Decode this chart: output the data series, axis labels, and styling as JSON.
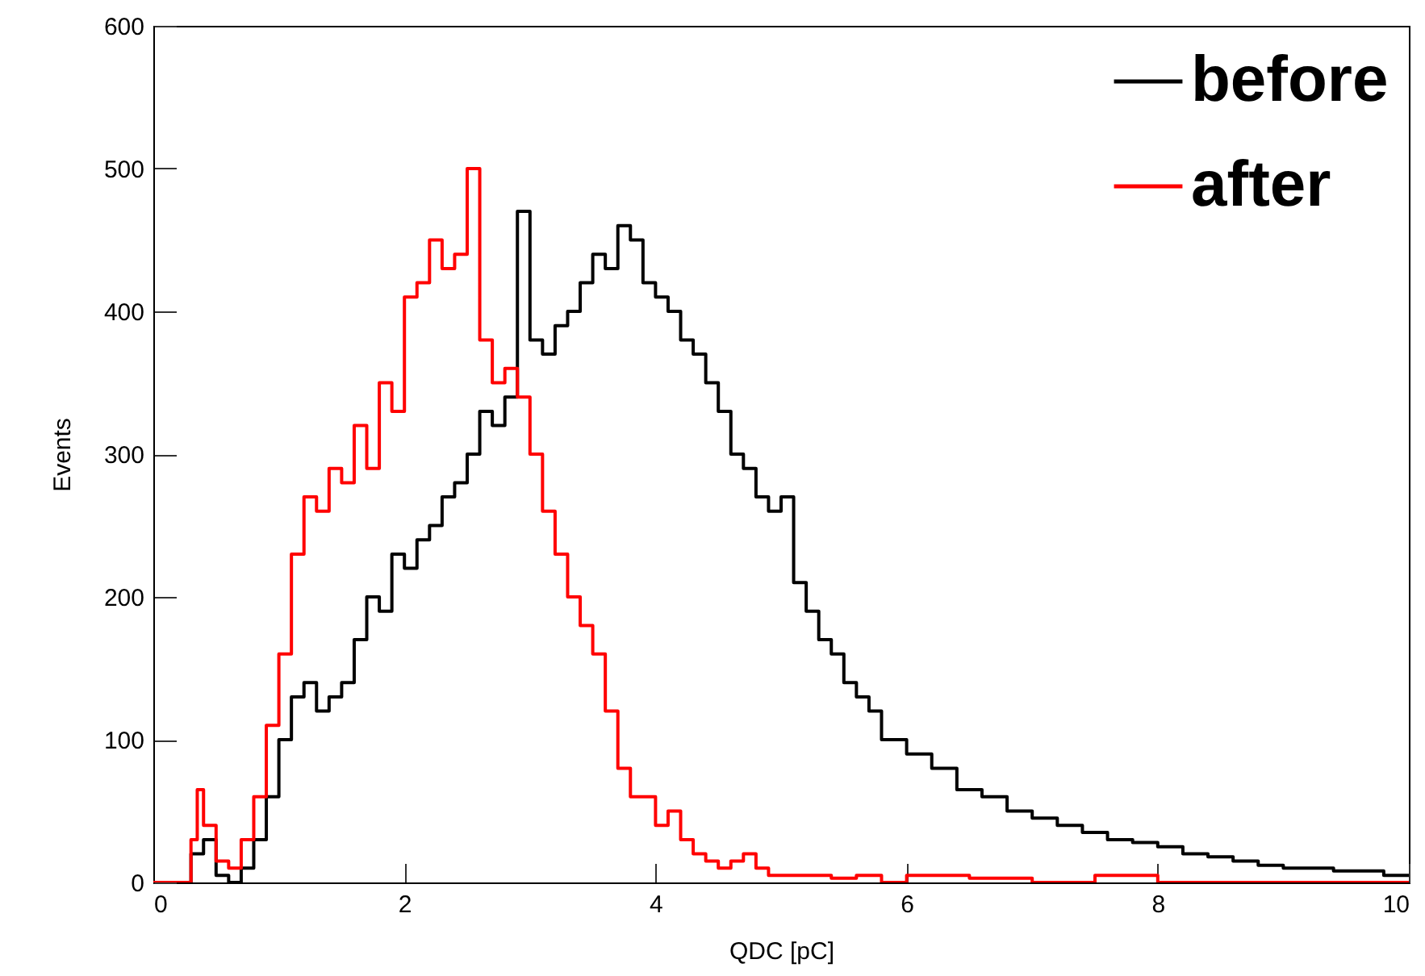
{
  "chart_data": {
    "type": "step",
    "xlabel": "QDC [pC]",
    "ylabel": "Events",
    "xlim": [
      0,
      10
    ],
    "ylim": [
      0,
      600
    ],
    "xticks": [
      0,
      2,
      4,
      6,
      8,
      10
    ],
    "yticks": [
      0,
      100,
      200,
      300,
      400,
      500,
      600
    ],
    "grid": false,
    "legend": "top right",
    "series": [
      {
        "name": "before",
        "color": "#000000",
        "x": [
          0,
          0.3,
          0.4,
          0.5,
          0.6,
          0.7,
          0.8,
          0.9,
          1.0,
          1.1,
          1.2,
          1.3,
          1.4,
          1.5,
          1.6,
          1.7,
          1.8,
          1.9,
          2.0,
          2.1,
          2.2,
          2.3,
          2.4,
          2.5,
          2.6,
          2.7,
          2.8,
          2.9,
          3.0,
          3.1,
          3.2,
          3.3,
          3.4,
          3.5,
          3.6,
          3.7,
          3.8,
          3.9,
          4.0,
          4.1,
          4.2,
          4.3,
          4.4,
          4.5,
          4.6,
          4.7,
          4.8,
          4.9,
          5.0,
          5.1,
          5.2,
          5.3,
          5.4,
          5.5,
          5.6,
          5.7,
          5.8,
          5.9,
          6.0,
          6.2,
          6.4,
          6.6,
          6.8,
          7.0,
          7.2,
          7.4,
          7.6,
          7.8,
          8.0,
          8.2,
          8.4,
          8.6,
          8.8,
          9.0,
          9.2,
          9.4,
          9.6,
          9.8,
          10
        ],
        "values": [
          0,
          20,
          30,
          5,
          0,
          10,
          30,
          60,
          100,
          130,
          140,
          120,
          130,
          140,
          170,
          200,
          190,
          230,
          220,
          240,
          250,
          270,
          280,
          300,
          330,
          320,
          340,
          470,
          380,
          370,
          390,
          400,
          420,
          440,
          430,
          460,
          450,
          420,
          410,
          400,
          380,
          370,
          350,
          330,
          300,
          290,
          270,
          260,
          270,
          210,
          190,
          170,
          160,
          140,
          130,
          120,
          100,
          100,
          90,
          80,
          65,
          60,
          50,
          45,
          40,
          35,
          30,
          28,
          25,
          20,
          18,
          15,
          12,
          10,
          10,
          8,
          8,
          5,
          5
        ]
      },
      {
        "name": "after",
        "color": "#ff0000",
        "x": [
          0,
          0.3,
          0.35,
          0.4,
          0.5,
          0.6,
          0.7,
          0.8,
          0.9,
          1.0,
          1.1,
          1.2,
          1.3,
          1.4,
          1.5,
          1.6,
          1.7,
          1.8,
          1.9,
          2.0,
          2.1,
          2.2,
          2.3,
          2.4,
          2.5,
          2.6,
          2.7,
          2.8,
          2.9,
          3.0,
          3.1,
          3.2,
          3.3,
          3.4,
          3.5,
          3.6,
          3.7,
          3.8,
          3.9,
          4.0,
          4.1,
          4.2,
          4.3,
          4.4,
          4.5,
          4.6,
          4.7,
          4.8,
          4.9,
          5.0,
          5.2,
          5.4,
          5.6,
          5.8,
          6.0,
          6.5,
          7.0,
          7.5,
          8.0,
          10
        ],
        "values": [
          0,
          30,
          65,
          40,
          15,
          10,
          30,
          60,
          110,
          160,
          230,
          270,
          260,
          290,
          280,
          320,
          290,
          350,
          330,
          410,
          420,
          450,
          430,
          440,
          500,
          380,
          350,
          360,
          340,
          300,
          260,
          230,
          200,
          180,
          160,
          120,
          80,
          60,
          60,
          40,
          50,
          30,
          20,
          15,
          10,
          15,
          20,
          10,
          5,
          5,
          5,
          3,
          5,
          0,
          5,
          3,
          0,
          5,
          0,
          0
        ]
      }
    ]
  }
}
